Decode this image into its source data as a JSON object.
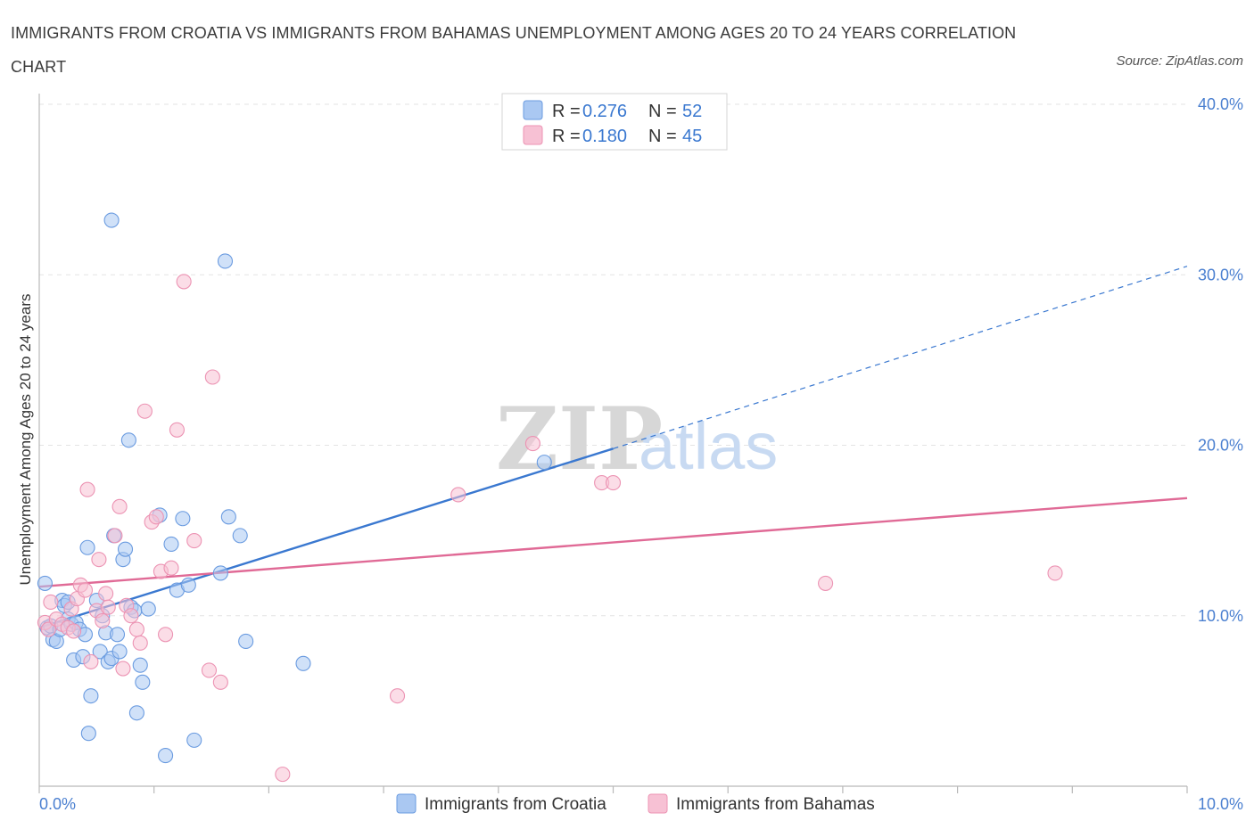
{
  "title": "IMMIGRANTS FROM CROATIA VS IMMIGRANTS FROM BAHAMAS UNEMPLOYMENT AMONG AGES 20 TO 24 YEARS CORRELATION CHART",
  "source": "Source: ZipAtlas.com",
  "watermark": {
    "zip": "ZIP",
    "atlas": "atlas"
  },
  "chart_data": {
    "type": "scatter",
    "title": "IMMIGRANTS FROM CROATIA VS IMMIGRANTS FROM BAHAMAS UNEMPLOYMENT AMONG AGES 20 TO 24 YEARS CORRELATION CHART",
    "xlabel": "",
    "ylabel": "Unemployment Among Ages 20 to 24 years",
    "xlim": [
      0,
      10
    ],
    "ylim": [
      0,
      40
    ],
    "x_tick_labels": [
      "0.0%",
      "10.0%"
    ],
    "y_ticks": [
      10,
      20,
      30,
      40
    ],
    "y_tick_labels": [
      "10.0%",
      "20.0%",
      "30.0%",
      "40.0%"
    ],
    "grid": true,
    "legend": [
      {
        "r_label": "R =",
        "r_value": "0.276",
        "n_label": "N =",
        "n_value": "52"
      },
      {
        "r_label": "R =",
        "r_value": "0.180",
        "n_label": "N =",
        "n_value": "45"
      }
    ],
    "series": [
      {
        "name": "Immigrants from Croatia",
        "color": "#6a9be0",
        "fill": "#aac8f2",
        "trend_color": "#3a78d0",
        "trend": {
          "x0": 0.0,
          "y0": 9.3,
          "x1": 5.0,
          "y1": 19.8,
          "dash_to_x": 10.0,
          "dash_to_y": 30.5
        },
        "points": [
          [
            0.05,
            11.9
          ],
          [
            0.07,
            9.3
          ],
          [
            0.1,
            9.4
          ],
          [
            0.12,
            8.6
          ],
          [
            0.15,
            8.5
          ],
          [
            0.18,
            9.2
          ],
          [
            0.2,
            10.9
          ],
          [
            0.22,
            10.6
          ],
          [
            0.25,
            9.8
          ],
          [
            0.28,
            9.5
          ],
          [
            0.3,
            7.4
          ],
          [
            0.32,
            9.6
          ],
          [
            0.35,
            9.2
          ],
          [
            0.38,
            7.6
          ],
          [
            0.4,
            8.9
          ],
          [
            0.42,
            14.0
          ],
          [
            0.43,
            3.1
          ],
          [
            0.45,
            5.3
          ],
          [
            0.5,
            10.9
          ],
          [
            0.53,
            7.9
          ],
          [
            0.55,
            10.0
          ],
          [
            0.58,
            9.0
          ],
          [
            0.6,
            7.3
          ],
          [
            0.63,
            7.5
          ],
          [
            0.65,
            14.7
          ],
          [
            0.68,
            8.9
          ],
          [
            0.7,
            7.9
          ],
          [
            0.73,
            13.3
          ],
          [
            0.75,
            13.9
          ],
          [
            0.78,
            20.3
          ],
          [
            0.8,
            10.5
          ],
          [
            0.83,
            10.3
          ],
          [
            0.85,
            4.3
          ],
          [
            0.88,
            7.1
          ],
          [
            0.9,
            6.1
          ],
          [
            0.95,
            10.4
          ],
          [
            1.05,
            15.9
          ],
          [
            1.1,
            1.8
          ],
          [
            1.15,
            14.2
          ],
          [
            1.2,
            11.5
          ],
          [
            1.25,
            15.7
          ],
          [
            1.3,
            11.8
          ],
          [
            1.35,
            2.7
          ],
          [
            1.58,
            12.5
          ],
          [
            1.62,
            30.8
          ],
          [
            1.65,
            15.8
          ],
          [
            1.75,
            14.7
          ],
          [
            1.8,
            8.5
          ],
          [
            2.3,
            7.2
          ],
          [
            0.63,
            33.2
          ],
          [
            4.4,
            19.0
          ],
          [
            0.25,
            10.8
          ]
        ]
      },
      {
        "name": "Immigrants from Bahamas",
        "color": "#ec93b3",
        "fill": "#f7c1d4",
        "trend_color": "#e06a96",
        "trend": {
          "x0": 0.0,
          "y0": 11.7,
          "x1": 10.0,
          "y1": 16.9
        },
        "points": [
          [
            0.05,
            9.6
          ],
          [
            0.08,
            9.2
          ],
          [
            0.1,
            10.8
          ],
          [
            0.15,
            9.8
          ],
          [
            0.2,
            9.5
          ],
          [
            0.25,
            9.3
          ],
          [
            0.28,
            10.4
          ],
          [
            0.3,
            9.1
          ],
          [
            0.33,
            11.0
          ],
          [
            0.36,
            11.8
          ],
          [
            0.4,
            11.5
          ],
          [
            0.42,
            17.4
          ],
          [
            0.45,
            7.3
          ],
          [
            0.5,
            10.3
          ],
          [
            0.52,
            13.3
          ],
          [
            0.55,
            9.7
          ],
          [
            0.58,
            11.3
          ],
          [
            0.6,
            10.5
          ],
          [
            0.66,
            14.7
          ],
          [
            0.7,
            16.4
          ],
          [
            0.73,
            6.9
          ],
          [
            0.76,
            10.6
          ],
          [
            0.8,
            10.0
          ],
          [
            0.85,
            9.2
          ],
          [
            0.88,
            8.4
          ],
          [
            0.92,
            22.0
          ],
          [
            0.98,
            15.5
          ],
          [
            1.02,
            15.8
          ],
          [
            1.06,
            12.6
          ],
          [
            1.1,
            8.9
          ],
          [
            1.15,
            12.8
          ],
          [
            1.2,
            20.9
          ],
          [
            1.26,
            29.6
          ],
          [
            1.35,
            14.4
          ],
          [
            1.48,
            6.8
          ],
          [
            1.51,
            24.0
          ],
          [
            1.58,
            6.1
          ],
          [
            2.12,
            0.7
          ],
          [
            3.12,
            5.3
          ],
          [
            3.65,
            17.1
          ],
          [
            4.3,
            20.1
          ],
          [
            4.9,
            17.8
          ],
          [
            5.0,
            17.8
          ],
          [
            6.85,
            11.9
          ],
          [
            8.85,
            12.5
          ]
        ]
      }
    ]
  }
}
